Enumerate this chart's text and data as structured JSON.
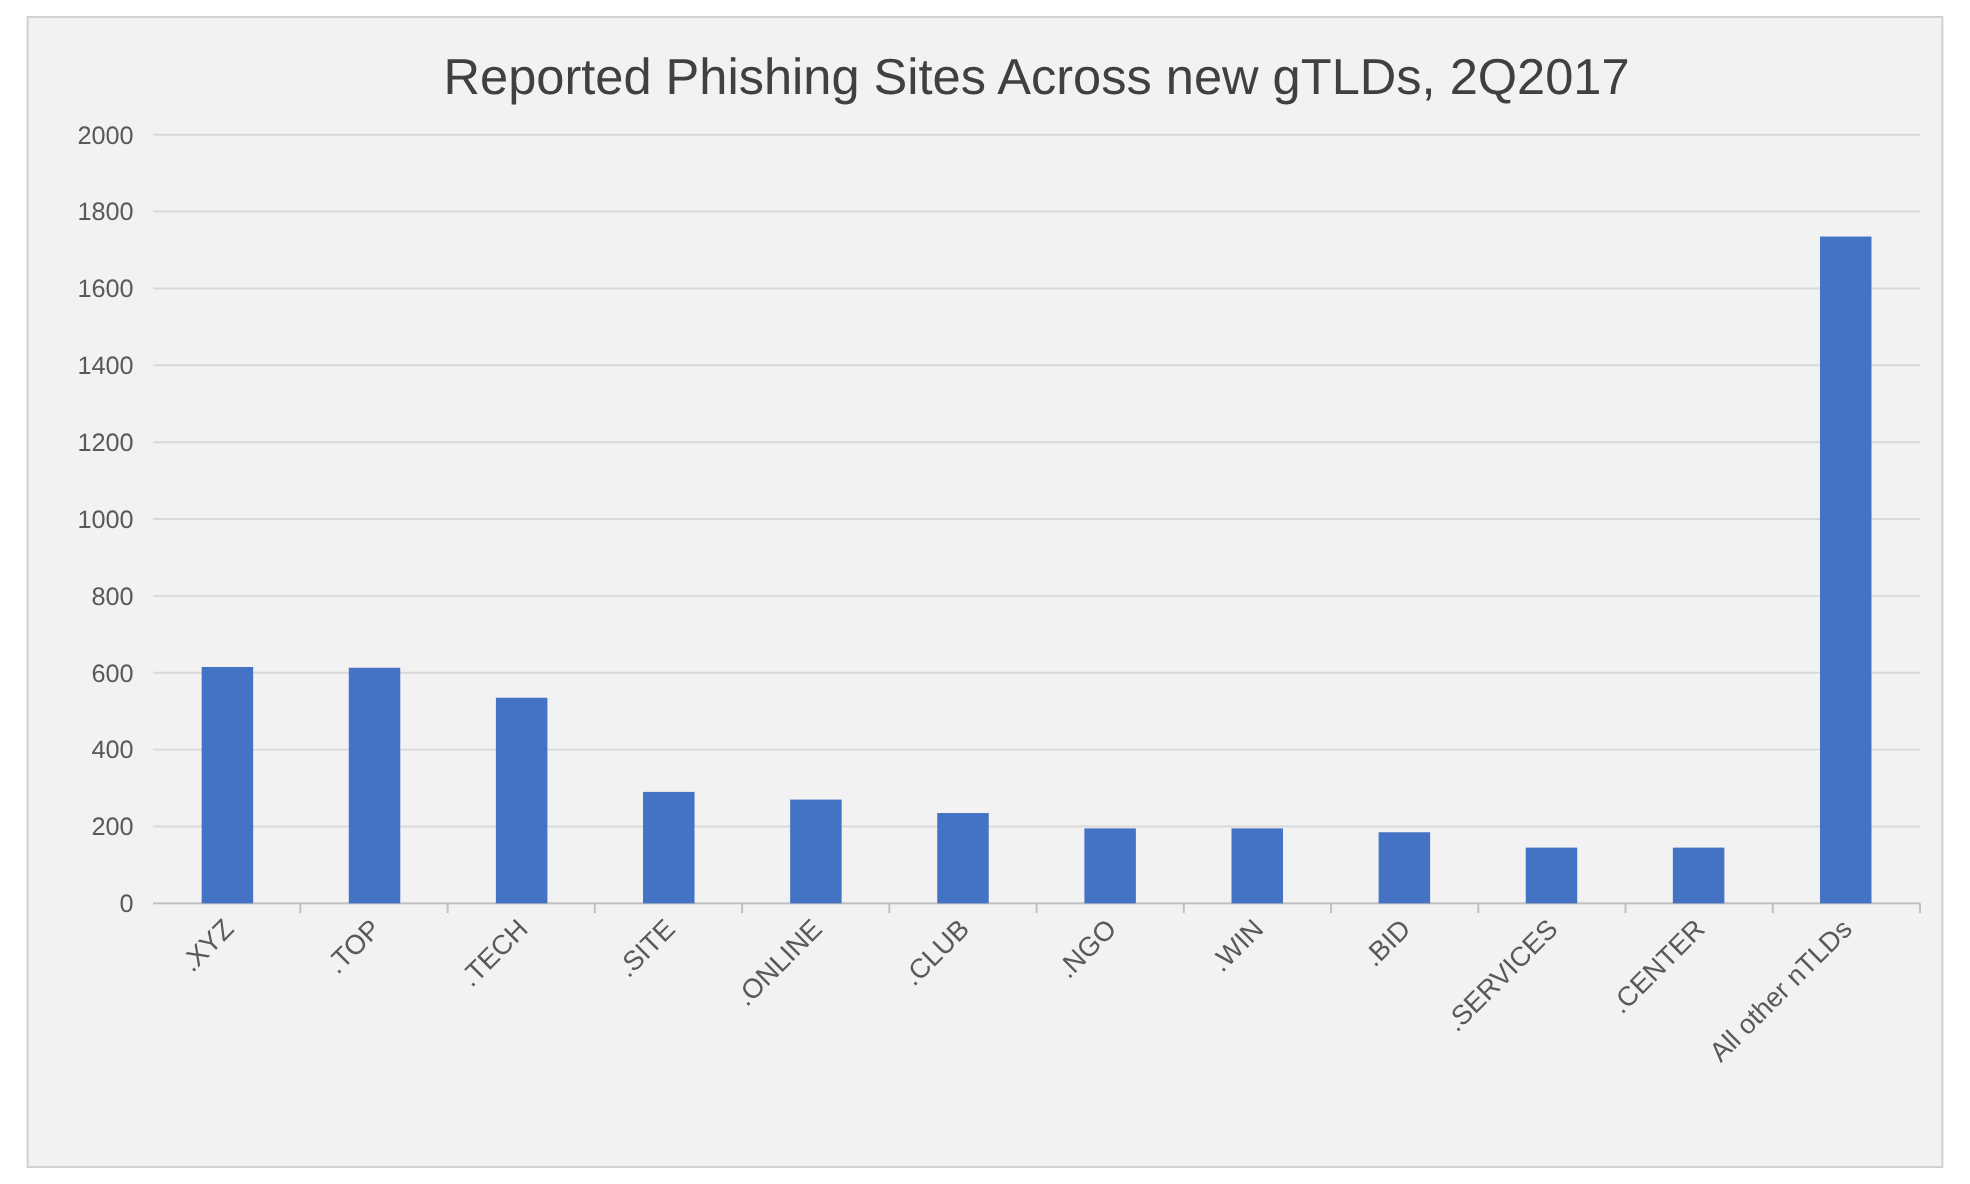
{
  "chart_data": {
    "type": "bar",
    "title": "Reported Phishing Sites Across new gTLDs, 2Q2017",
    "categories": [
      ".XYZ",
      ".TOP",
      ".TECH",
      ".SITE",
      ".ONLINE",
      ".CLUB",
      ".NGO",
      ".WIN",
      ".BID",
      ".SERVICES",
      ".CENTER",
      "All other nTLDs"
    ],
    "values": [
      615,
      613,
      535,
      290,
      270,
      235,
      195,
      195,
      185,
      145,
      145,
      1735
    ],
    "color": "#4472c4",
    "ylim": [
      0,
      2000
    ],
    "yticks": [
      0,
      200,
      400,
      600,
      800,
      1000,
      1200,
      1400,
      1600,
      1800,
      2000
    ],
    "grid": "y"
  }
}
